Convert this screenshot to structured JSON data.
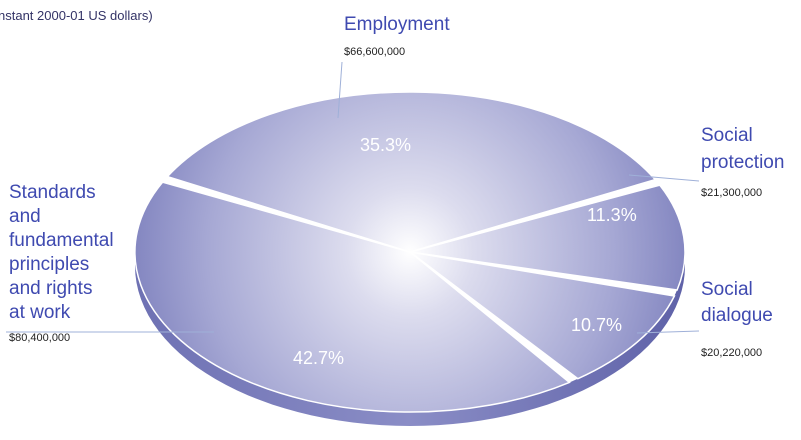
{
  "subtitle": "nstant 2000-01 US dollars)",
  "colors": {
    "label": "#3f4ab0",
    "leader": "#9fb0d8",
    "slice_light": "#e4e5f2",
    "slice_mid": "#a6a8d4",
    "slice_dark": "#7d80bd",
    "side": "#5f62a8"
  },
  "chart_data": {
    "type": "pie",
    "title": "",
    "categories": [
      "Employment",
      "Social protection",
      "Social dialogue",
      "Standards and fundamental principles and rights at work"
    ],
    "values": [
      66600000,
      21300000,
      20220000,
      80400000
    ],
    "slices": [
      {
        "name": "Employment",
        "label_lines": [
          "Employment"
        ],
        "amount": "$66,600,000",
        "percent": "35.3%",
        "value": 66600000
      },
      {
        "name": "Social protection",
        "label_lines": [
          "Social",
          "protection"
        ],
        "amount": "$21,300,000",
        "percent": "11.3%",
        "value": 21300000
      },
      {
        "name": "Social dialogue",
        "label_lines": [
          "Social",
          "dialogue"
        ],
        "amount": "$20,220,000",
        "percent": "10.7%",
        "value": 20220000
      },
      {
        "name": "Standards and fundamental principles and rights at work",
        "label_lines": [
          "Standards",
          "and",
          "fundamental",
          "principles",
          "and rights",
          "at work"
        ],
        "amount": "$80,400,000",
        "percent": "42.7%",
        "value": 80400000
      }
    ]
  }
}
